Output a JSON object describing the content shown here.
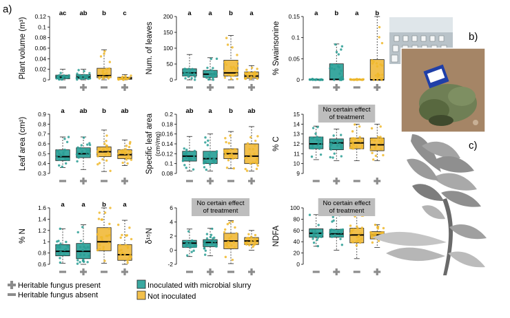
{
  "figure": {
    "panel_label_a": "a)",
    "panel_label_b": "b)",
    "panel_label_c": "c)"
  },
  "colors": {
    "inoculated": "#3aa8a0",
    "not_inoculated": "#f2c04c",
    "points_inoculated": "#2a9d94",
    "points_not_inoculated": "#f0b82c",
    "box_stroke": "#222222",
    "marker": "#8c8c8c",
    "note_bg": "#bdbdbd"
  },
  "chart_data": [
    {
      "type": "box",
      "ylabel": "Plant volume (m³)",
      "ylim": [
        0,
        0.12
      ],
      "yticks": [
        0,
        0.02,
        0.04,
        0.06,
        0.08,
        0.1,
        0.12
      ],
      "tick_labels": [
        "0",
        "0.02",
        "0.04",
        "0.06",
        "0.08",
        "0.1",
        "0.12"
      ],
      "letters": [
        "ac",
        "ab",
        "b",
        "c"
      ],
      "note": "",
      "boxes": [
        {
          "q1": 0.002,
          "med": 0.005,
          "q3": 0.009,
          "wlo": 0,
          "whi": 0.02
        },
        {
          "q1": 0.002,
          "med": 0.005,
          "q3": 0.01,
          "wlo": 0,
          "whi": 0.02
        },
        {
          "q1": 0.004,
          "med": 0.008,
          "q3": 0.022,
          "wlo": 0,
          "whi": 0.057
        },
        {
          "q1": 0.001,
          "med": 0.003,
          "q3": 0.005,
          "wlo": 0,
          "whi": 0.01
        }
      ]
    },
    {
      "type": "box",
      "ylabel": "Num. of leaves",
      "ylim": [
        0,
        200
      ],
      "yticks": [
        0,
        50,
        100,
        150,
        200
      ],
      "tick_labels": [
        "0",
        "50",
        "100",
        "150",
        "200"
      ],
      "letters": [
        "a",
        "a",
        "b",
        "a"
      ],
      "note": "",
      "boxes": [
        {
          "q1": 12,
          "med": 22,
          "q3": 35,
          "wlo": 0,
          "whi": 80
        },
        {
          "q1": 8,
          "med": 18,
          "q3": 30,
          "wlo": 0,
          "whi": 70
        },
        {
          "q1": 12,
          "med": 22,
          "q3": 62,
          "wlo": 0,
          "whi": 140
        },
        {
          "q1": 5,
          "med": 12,
          "q3": 25,
          "wlo": 0,
          "whi": 45
        }
      ]
    },
    {
      "type": "box",
      "ylabel": "% Swainsonine",
      "ylim": [
        0,
        0.15
      ],
      "yticks": [
        0,
        0.05,
        0.1,
        0.15
      ],
      "tick_labels": [
        "0",
        "0.05",
        "0.1",
        "0.15"
      ],
      "letters": [
        "a",
        "b",
        "a",
        "b"
      ],
      "note": "",
      "boxes": [
        {
          "q1": 0,
          "med": 0,
          "q3": 0.001,
          "wlo": 0,
          "whi": 0.002
        },
        {
          "q1": 0,
          "med": 0.001,
          "q3": 0.038,
          "wlo": 0,
          "whi": 0.085
        },
        {
          "q1": 0,
          "med": 0,
          "q3": 0.001,
          "wlo": 0,
          "whi": 0.002
        },
        {
          "q1": 0,
          "med": 0,
          "q3": 0.048,
          "wlo": 0,
          "whi": 0.15
        }
      ]
    },
    {
      "type": "box",
      "ylabel": "Leaf area (cm²)",
      "ylim": [
        0.3,
        0.9
      ],
      "yticks": [
        0.3,
        0.4,
        0.5,
        0.6,
        0.7,
        0.8,
        0.9
      ],
      "tick_labels": [
        "0.3",
        "0.4",
        "0.5",
        "0.6",
        "0.7",
        "0.8",
        "0.9"
      ],
      "letters": [
        "a",
        "ab",
        "b",
        "ab"
      ],
      "note": "",
      "boxes": [
        {
          "q1": 0.43,
          "med": 0.47,
          "q3": 0.54,
          "wlo": 0.36,
          "whi": 0.67
        },
        {
          "q1": 0.46,
          "med": 0.5,
          "q3": 0.56,
          "wlo": 0.34,
          "whi": 0.67
        },
        {
          "q1": 0.47,
          "med": 0.52,
          "q3": 0.57,
          "wlo": 0.32,
          "whi": 0.74
        },
        {
          "q1": 0.45,
          "med": 0.49,
          "q3": 0.54,
          "wlo": 0.38,
          "whi": 0.64
        }
      ]
    },
    {
      "type": "box",
      "ylabel": "Specific leaf area",
      "ylabel2": "(cm²/mg)",
      "ylim": [
        0.08,
        0.2
      ],
      "yticks": [
        0.08,
        0.1,
        0.12,
        0.14,
        0.16,
        0.18,
        0.2
      ],
      "tick_labels": [
        "0.08",
        "0.1",
        "0.12",
        "0.14",
        "0.16",
        "0.18",
        "0.2"
      ],
      "letters": [
        "ab",
        "a",
        "b",
        "ab"
      ],
      "note": "",
      "boxes": [
        {
          "q1": 0.105,
          "med": 0.115,
          "q3": 0.125,
          "wlo": 0.085,
          "whi": 0.155
        },
        {
          "q1": 0.1,
          "med": 0.11,
          "q3": 0.125,
          "wlo": 0.085,
          "whi": 0.16
        },
        {
          "q1": 0.11,
          "med": 0.12,
          "q3": 0.13,
          "wlo": 0.09,
          "whi": 0.165
        },
        {
          "q1": 0.1,
          "med": 0.115,
          "q3": 0.14,
          "wlo": 0.085,
          "whi": 0.175
        }
      ]
    },
    {
      "type": "box",
      "ylabel": "% C",
      "ylim": [
        9,
        15
      ],
      "yticks": [
        9,
        10,
        11,
        12,
        13,
        14,
        15
      ],
      "tick_labels": [
        "9",
        "10",
        "11",
        "12",
        "13",
        "14",
        "15"
      ],
      "letters": [],
      "note": "No certain effect|of treatment",
      "boxes": [
        {
          "q1": 11.5,
          "med": 12,
          "q3": 12.7,
          "wlo": 10.4,
          "whi": 13.8
        },
        {
          "q1": 11.4,
          "med": 12.1,
          "q3": 12.5,
          "wlo": 10.3,
          "whi": 13.5
        },
        {
          "q1": 11.5,
          "med": 12.1,
          "q3": 12.6,
          "wlo": 10.3,
          "whi": 14
        },
        {
          "q1": 11.3,
          "med": 11.9,
          "q3": 12.6,
          "wlo": 10.3,
          "whi": 14
        }
      ]
    },
    {
      "type": "box",
      "ylabel": "% N",
      "ylim": [
        0.6,
        1.6
      ],
      "yticks": [
        0.6,
        0.8,
        1,
        1.2,
        1.4,
        1.6
      ],
      "tick_labels": [
        "0.6",
        "0.8",
        "1",
        "1.2",
        "1.4",
        "1.6"
      ],
      "letters": [
        "a",
        "a",
        "b",
        "a"
      ],
      "note": "",
      "boxes": [
        {
          "q1": 0.75,
          "med": 0.83,
          "q3": 0.95,
          "wlo": 0.62,
          "whi": 1.23
        },
        {
          "q1": 0.7,
          "med": 0.83,
          "q3": 0.97,
          "wlo": 0.6,
          "whi": 1.3
        },
        {
          "q1": 0.84,
          "med": 1,
          "q3": 1.25,
          "wlo": 0.62,
          "whi": 1.6
        },
        {
          "q1": 0.67,
          "med": 0.77,
          "q3": 0.95,
          "wlo": 0.6,
          "whi": 1.38
        }
      ]
    },
    {
      "type": "box",
      "ylabel": "δ¹⁵N",
      "ylim": [
        -2,
        6
      ],
      "yticks": [
        -2,
        0,
        2,
        4,
        6
      ],
      "tick_labels": [
        "-2",
        "0",
        "2",
        "4",
        "6"
      ],
      "letters": [],
      "note": "No certain effect|of treatment",
      "boxes": [
        {
          "q1": 0.4,
          "med": 1,
          "q3": 1.4,
          "wlo": -0.9,
          "whi": 3
        },
        {
          "q1": 0.5,
          "med": 1.1,
          "q3": 1.5,
          "wlo": -0.8,
          "whi": 3.1
        },
        {
          "q1": 0.2,
          "med": 1.3,
          "q3": 2.4,
          "wlo": -1.9,
          "whi": 4.2
        },
        {
          "q1": 0.8,
          "med": 1.3,
          "q3": 1.8,
          "wlo": 0,
          "whi": 2.8
        }
      ]
    },
    {
      "type": "box",
      "ylabel": "NDFA",
      "ylim": [
        0,
        100
      ],
      "yticks": [
        0,
        20,
        40,
        60,
        80,
        100
      ],
      "tick_labels": [
        "0",
        "20",
        "40",
        "60",
        "80",
        "100"
      ],
      "letters": [],
      "note": "No certain effect|of treatment",
      "boxes": [
        {
          "q1": 48,
          "med": 55,
          "q3": 63,
          "wlo": 32,
          "whi": 88
        },
        {
          "q1": 48,
          "med": 54,
          "q3": 62,
          "wlo": 25,
          "whi": 88
        },
        {
          "q1": 38,
          "med": 52,
          "q3": 64,
          "wlo": 10,
          "whi": 98
        },
        {
          "q1": 45,
          "med": 52,
          "q3": 58,
          "wlo": 30,
          "whi": 70
        }
      ]
    }
  ],
  "legend": {
    "present": "Heritable fungus present",
    "absent": "Heritable fungus absent",
    "inoculated": "Inoculated with microbial slurry",
    "not_inoculated": "Not inoculated"
  }
}
